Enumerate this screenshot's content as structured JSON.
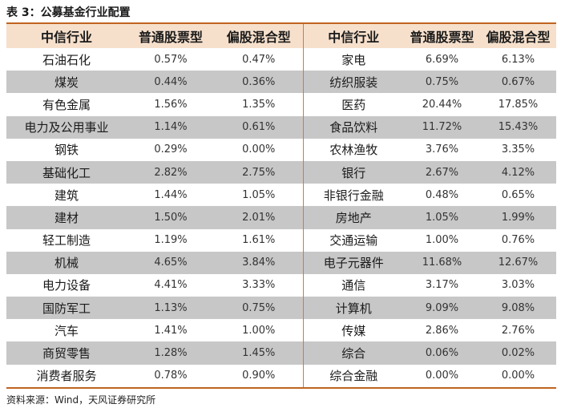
{
  "caption": "表 3：公募基金行业配置",
  "headers": [
    "中信行业",
    "普通股票型",
    "偏股混合型",
    "中信行业",
    "普通股票型",
    "偏股混合型"
  ],
  "rows": [
    {
      "industry_left": "石油石化",
      "stock_left": "0.57%",
      "mixed_left": "0.47%",
      "industry_right": "家电",
      "stock_right": "6.69%",
      "mixed_right": "6.13%"
    },
    {
      "industry_left": "煤炭",
      "stock_left": "0.44%",
      "mixed_left": "0.36%",
      "industry_right": "纺织服装",
      "stock_right": "0.75%",
      "mixed_right": "0.67%"
    },
    {
      "industry_left": "有色金属",
      "stock_left": "1.56%",
      "mixed_left": "1.35%",
      "industry_right": "医药",
      "stock_right": "20.44%",
      "mixed_right": "17.85%"
    },
    {
      "industry_left": "电力及公用事业",
      "stock_left": "1.14%",
      "mixed_left": "0.61%",
      "industry_right": "食品饮料",
      "stock_right": "11.72%",
      "mixed_right": "15.43%"
    },
    {
      "industry_left": "钢铁",
      "stock_left": "0.29%",
      "mixed_left": "0.00%",
      "industry_right": "农林渔牧",
      "stock_right": "3.76%",
      "mixed_right": "3.35%"
    },
    {
      "industry_left": "基础化工",
      "stock_left": "2.82%",
      "mixed_left": "2.75%",
      "industry_right": "银行",
      "stock_right": "2.67%",
      "mixed_right": "4.12%"
    },
    {
      "industry_left": "建筑",
      "stock_left": "1.44%",
      "mixed_left": "1.05%",
      "industry_right": "非银行金融",
      "stock_right": "0.48%",
      "mixed_right": "0.65%"
    },
    {
      "industry_left": "建材",
      "stock_left": "1.50%",
      "mixed_left": "2.01%",
      "industry_right": "房地产",
      "stock_right": "1.05%",
      "mixed_right": "1.99%"
    },
    {
      "industry_left": "轻工制造",
      "stock_left": "1.19%",
      "mixed_left": "1.61%",
      "industry_right": "交通运输",
      "stock_right": "1.00%",
      "mixed_right": "0.76%"
    },
    {
      "industry_left": "机械",
      "stock_left": "4.65%",
      "mixed_left": "3.84%",
      "industry_right": "电子元器件",
      "stock_right": "11.68%",
      "mixed_right": "12.67%"
    },
    {
      "industry_left": "电力设备",
      "stock_left": "4.41%",
      "mixed_left": "3.33%",
      "industry_right": "通信",
      "stock_right": "3.17%",
      "mixed_right": "3.03%"
    },
    {
      "industry_left": "国防军工",
      "stock_left": "1.13%",
      "mixed_left": "0.75%",
      "industry_right": "计算机",
      "stock_right": "9.09%",
      "mixed_right": "9.08%"
    },
    {
      "industry_left": "汽车",
      "stock_left": "1.41%",
      "mixed_left": "1.00%",
      "industry_right": "传媒",
      "stock_right": "2.86%",
      "mixed_right": "2.76%"
    },
    {
      "industry_left": "商贸零售",
      "stock_left": "1.28%",
      "mixed_left": "1.45%",
      "industry_right": "综合",
      "stock_right": "0.06%",
      "mixed_right": "0.02%"
    },
    {
      "industry_left": "消费者服务",
      "stock_left": "0.78%",
      "mixed_left": "0.90%",
      "industry_right": "综合金融",
      "stock_right": "0.00%",
      "mixed_right": "0.00%"
    }
  ],
  "source": "资料来源：Wind，天风证券研究所",
  "colors": {
    "header_bg": "#f6e0cc",
    "stripe_bg": "#c7c7c7",
    "rule": "#c0641f",
    "separator": "#d77a2a"
  }
}
